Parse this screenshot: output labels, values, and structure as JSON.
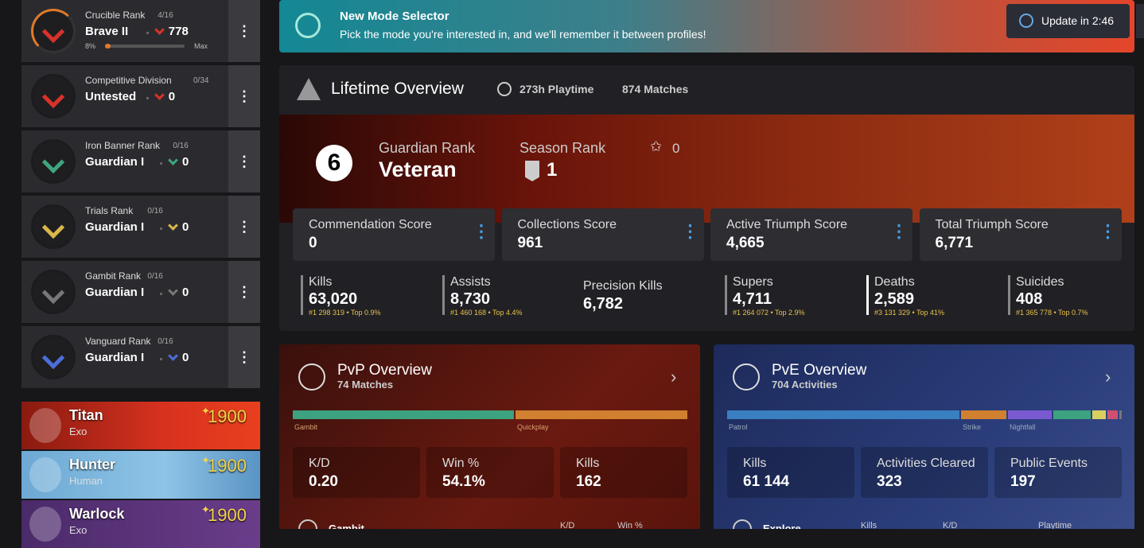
{
  "sidebar": {
    "ranks": [
      {
        "name": "Crucible Rank",
        "progress": "4/16",
        "title": "Brave II",
        "points": "778",
        "bar_start": "8%",
        "bar_end": "Max"
      },
      {
        "name": "Competitive Division",
        "progress": "0/34",
        "title": "Untested",
        "points": "0"
      },
      {
        "name": "Iron Banner Rank",
        "progress": "0/16",
        "title": "Guardian I",
        "points": "0"
      },
      {
        "name": "Trials Rank",
        "progress": "0/16",
        "title": "Guardian I",
        "points": "0"
      },
      {
        "name": "Gambit Rank",
        "progress": "0/16",
        "title": "Guardian I",
        "points": "0"
      },
      {
        "name": "Vanguard Rank",
        "progress": "0/16",
        "title": "Guardian I",
        "points": "0"
      }
    ],
    "characters": [
      {
        "class": "Titan",
        "race": "Exo",
        "light": "1900"
      },
      {
        "class": "Hunter",
        "race": "Human",
        "light": "1900"
      },
      {
        "class": "Warlock",
        "race": "Exo",
        "light": "1900"
      }
    ]
  },
  "banner": {
    "title": "New Mode Selector",
    "text": "Pick the mode you're interested in, and we'll remember it between profiles!",
    "update": "Update in 2:46"
  },
  "lifetime": {
    "title": "Lifetime Overview",
    "playtime": "273h Playtime",
    "matches": "874 Matches",
    "guardian_rank_number": "6",
    "guardian_rank_label": "Guardian Rank",
    "guardian_rank": "Veteran",
    "season_rank_label": "Season Rank",
    "season_rank": "1",
    "stars": "0",
    "scores": [
      {
        "label": "Commendation Score",
        "value": "0"
      },
      {
        "label": "Collections Score",
        "value": "961"
      },
      {
        "label": "Active Triumph Score",
        "value": "4,665"
      },
      {
        "label": "Total Triumph Score",
        "value": "6,771"
      }
    ],
    "stats": [
      {
        "label": "Kills",
        "value": "63,020",
        "rank": "#1 298 319 • Top 0.9%"
      },
      {
        "label": "Assists",
        "value": "8,730",
        "rank": "#1 460 168 • Top 4.4%"
      },
      {
        "label": "Precision Kills",
        "value": "6,782"
      },
      {
        "label": "Supers",
        "value": "4,711",
        "rank": "#1 264 072 • Top 2.9%"
      },
      {
        "label": "Deaths",
        "value": "2,589",
        "rank": "#3 131 329 • Top 41%"
      },
      {
        "label": "Suicides",
        "value": "408",
        "rank": "#1 365 778 • Top 0.7%"
      }
    ]
  },
  "pvp": {
    "title": "PvP Overview",
    "subtitle": "74 Matches",
    "segments": [
      "Gambit",
      "Quickplay"
    ],
    "stats": [
      {
        "label": "K/D",
        "value": "0.20"
      },
      {
        "label": "Win %",
        "value": "54.1%"
      },
      {
        "label": "Kills",
        "value": "162"
      }
    ],
    "row": "Gambit",
    "columns": [
      "K/D",
      "Win %"
    ]
  },
  "pve": {
    "title": "PvE Overview",
    "subtitle": "704 Activities",
    "segments": [
      "Patrol",
      "Strike",
      "Nightfall"
    ],
    "stats": [
      {
        "label": "Kills",
        "value": "61 144"
      },
      {
        "label": "Activities Cleared",
        "value": "323"
      },
      {
        "label": "Public Events",
        "value": "197"
      }
    ],
    "row": "Explore",
    "columns": [
      "Kills",
      "K/D",
      "Playtime"
    ]
  }
}
